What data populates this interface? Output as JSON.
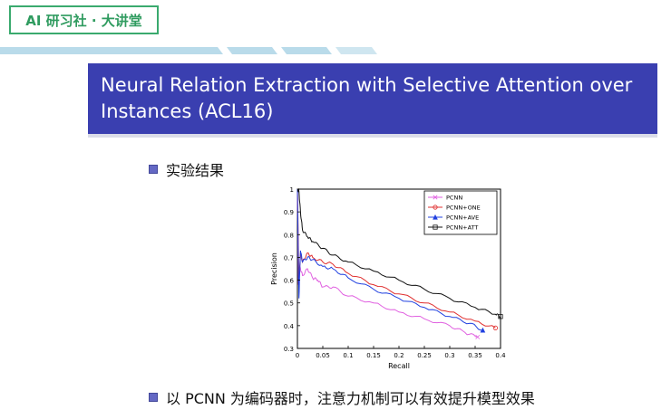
{
  "brand": {
    "label": "AI 研习社 · 大讲堂",
    "color": "#3aaa6e"
  },
  "slide": {
    "title": "Neural Relation Extraction with Selective Attention over Instances (ACL16)",
    "header_color": "#3a3fb0"
  },
  "bullets": [
    {
      "text": "实验结果"
    },
    {
      "text": "以 PCNN 为编码器时，注意力机制可以有效提升模型效果"
    }
  ],
  "chart_data": {
    "type": "line",
    "xlabel": "Recall",
    "ylabel": "Precision",
    "xlim": [
      0,
      0.4
    ],
    "ylim": [
      0.3,
      1.0
    ],
    "x_ticks": [
      "0",
      "0.05",
      "0.1",
      "0.15",
      "0.2",
      "0.25",
      "0.3",
      "0.35",
      "0.4"
    ],
    "y_ticks": [
      "0.3",
      "0.4",
      "0.5",
      "0.6",
      "0.7",
      "0.8",
      "0.9",
      "1"
    ],
    "grid": false,
    "legend_position": "top-right",
    "series": [
      {
        "name": "PCNN",
        "color": "#e060e0",
        "marker": "x",
        "points": [
          [
            0,
            1.0
          ],
          [
            0.002,
            0.58
          ],
          [
            0.005,
            0.66
          ],
          [
            0.01,
            0.62
          ],
          [
            0.02,
            0.65
          ],
          [
            0.03,
            0.61
          ],
          [
            0.04,
            0.6
          ],
          [
            0.05,
            0.57
          ],
          [
            0.07,
            0.57
          ],
          [
            0.1,
            0.53
          ],
          [
            0.15,
            0.5
          ],
          [
            0.2,
            0.46
          ],
          [
            0.25,
            0.43
          ],
          [
            0.3,
            0.4
          ],
          [
            0.33,
            0.37
          ],
          [
            0.355,
            0.35
          ]
        ]
      },
      {
        "name": "PCNN+ONE",
        "color": "#e03030",
        "marker": "o",
        "points": [
          [
            0,
            1.0
          ],
          [
            0.003,
            0.6
          ],
          [
            0.006,
            0.72
          ],
          [
            0.01,
            0.68
          ],
          [
            0.02,
            0.72
          ],
          [
            0.03,
            0.7
          ],
          [
            0.05,
            0.68
          ],
          [
            0.07,
            0.67
          ],
          [
            0.1,
            0.63
          ],
          [
            0.15,
            0.58
          ],
          [
            0.2,
            0.54
          ],
          [
            0.25,
            0.5
          ],
          [
            0.3,
            0.46
          ],
          [
            0.35,
            0.42
          ],
          [
            0.39,
            0.39
          ]
        ]
      },
      {
        "name": "PCNN+AVE",
        "color": "#2040e0",
        "marker": "^",
        "points": [
          [
            0,
            1.0
          ],
          [
            0.003,
            0.52
          ],
          [
            0.006,
            0.73
          ],
          [
            0.01,
            0.68
          ],
          [
            0.02,
            0.7
          ],
          [
            0.03,
            0.69
          ],
          [
            0.05,
            0.66
          ],
          [
            0.07,
            0.65
          ],
          [
            0.1,
            0.61
          ],
          [
            0.15,
            0.56
          ],
          [
            0.2,
            0.52
          ],
          [
            0.25,
            0.48
          ],
          [
            0.3,
            0.44
          ],
          [
            0.34,
            0.41
          ],
          [
            0.365,
            0.38
          ]
        ]
      },
      {
        "name": "PCNN+ATT",
        "color": "#111111",
        "marker": "s",
        "points": [
          [
            0,
            1.0
          ],
          [
            0.003,
            0.99
          ],
          [
            0.006,
            0.9
          ],
          [
            0.01,
            0.82
          ],
          [
            0.02,
            0.79
          ],
          [
            0.03,
            0.77
          ],
          [
            0.05,
            0.74
          ],
          [
            0.07,
            0.71
          ],
          [
            0.1,
            0.68
          ],
          [
            0.15,
            0.64
          ],
          [
            0.2,
            0.6
          ],
          [
            0.25,
            0.56
          ],
          [
            0.3,
            0.52
          ],
          [
            0.35,
            0.48
          ],
          [
            0.39,
            0.45
          ],
          [
            0.4,
            0.44
          ]
        ]
      }
    ]
  }
}
